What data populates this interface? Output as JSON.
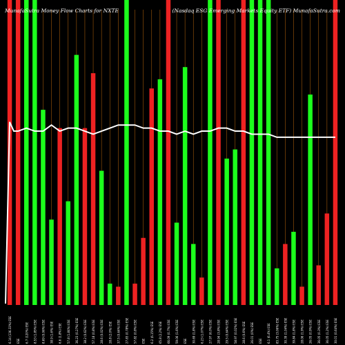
{
  "header": {
    "left_title": "MunafaSutra  Money Flow  Charts for NXTE",
    "right_title": "(Nasdaq    ESG Emerging Markets Equity ETF) MunafaSutra.com"
  },
  "chart_data": {
    "type": "bar",
    "title": "MunafaSutra  Money Flow  Charts for NXTE",
    "subtitle": "(Nasdaq    ESG Emerging Markets Equity ETF) MunafaSutra.com",
    "colors": {
      "up": "#1cff1c",
      "down": "#ee2222",
      "gridline": "#a35a0a",
      "line": "#ffffff",
      "background": "#000000"
    },
    "ylim": [
      0,
      100
    ],
    "categories": [
      "6.14 (136.33%) ESE",
      "ESE",
      "6.7 (120%) ESE",
      "8.53 (1.85%) ESE",
      "8.69 (0.06%) ESE",
      "38.9 (1.6%) ESE",
      "6.6 (1.8%) ESE",
      "57.8 (1.84%) ESE",
      "36.23 (0.27%) ESE",
      "38.2 (0.62%) ESE",
      "57.18 (0.8%) ESE",
      "28.6 (0.02%) ESE",
      "28.8 (2.0%) ESE",
      "37.5 (0.64%) ESE",
      "27.83 (0.78%) ESE",
      "57.82 (0.8%) ESE",
      "ESE",
      "6.2 (6.15%) ESE",
      "65.8 (2.2%) ESE",
      "66.09 (0.7%) ESE",
      "59.06 (1.6%) ESE",
      "ESE",
      "30.69 (1.8%) ESE",
      "6.23 (1.07%) ESE",
      "27.97 (6.0%) ESE",
      "28.94 (3.8%) ESE",
      "29.5 (0.64%) ESE",
      "58.97 (0.02%) ESE",
      "28.6 (0.6%) ESE",
      "26.01 (0%) ESE",
      "ESE",
      "6.1 (6.4%) ESE",
      "83.75 (3.06%) ESE",
      "30.39 (1.04%) ESE",
      "39.84 (1.8%) ESE",
      "28.06 (1.9%) ESE",
      "26.05 (0.9%) ESE",
      "36.05 (0.3%) ESE",
      "36.05 (1.2%) ESE",
      "30.01 (0.64%) ESE"
    ],
    "series": [
      {
        "values": [
          100,
          100,
          100,
          100,
          64,
          28,
          58,
          34,
          82,
          58,
          76,
          44,
          7,
          6,
          100,
          7,
          22,
          71,
          74,
          100,
          27,
          78,
          20,
          9,
          100,
          100,
          48,
          51,
          100,
          100,
          100,
          100,
          12,
          20,
          24,
          6,
          69,
          13,
          30,
          100
        ],
        "colors": [
          "down",
          "down",
          "up",
          "up",
          "up",
          "up",
          "down",
          "up",
          "up",
          "down",
          "down",
          "up",
          "up",
          "down",
          "up",
          "down",
          "down",
          "down",
          "up",
          "down",
          "up",
          "up",
          "up",
          "down",
          "up",
          "down",
          "up",
          "up",
          "down",
          "up",
          "up",
          "up",
          "up",
          "down",
          "up",
          "down",
          "up",
          "down",
          "down",
          "down"
        ]
      },
      {
        "type": "line",
        "values": [
          60,
          57,
          58,
          57,
          57,
          59,
          57,
          58,
          58,
          57,
          56,
          57,
          58,
          59,
          59,
          59,
          58,
          58,
          57,
          57,
          56,
          57,
          56,
          57,
          57,
          58,
          58,
          57,
          57,
          56,
          56,
          56,
          55,
          55,
          55,
          55,
          55,
          55,
          55,
          55
        ]
      }
    ]
  }
}
